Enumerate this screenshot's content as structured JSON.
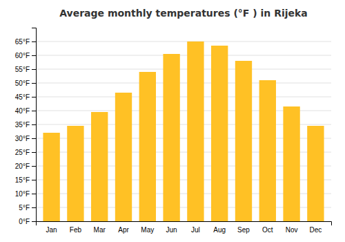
{
  "chart_data": {
    "type": "bar",
    "title": "Average monthly temperatures (°F ) in Rijeka",
    "categories": [
      "Jan",
      "Feb",
      "Mar",
      "Apr",
      "May",
      "Jun",
      "Jul",
      "Aug",
      "Sep",
      "Oct",
      "Nov",
      "Dec"
    ],
    "values": [
      32,
      34.5,
      39.5,
      46.5,
      54,
      60.5,
      65,
      63.5,
      58,
      51,
      41.5,
      34.5
    ],
    "color": "#FFC125",
    "ylim": [
      0,
      70
    ],
    "yticks": [
      {
        "value": 0,
        "label": "0°F"
      },
      {
        "value": 5,
        "label": "5°F"
      },
      {
        "value": 10,
        "label": "10°F"
      },
      {
        "value": 15,
        "label": "15°F"
      },
      {
        "value": 20,
        "label": "20°F"
      },
      {
        "value": 25,
        "label": "25°F"
      },
      {
        "value": 30,
        "label": "30°F"
      },
      {
        "value": 35,
        "label": "35°F"
      },
      {
        "value": 40,
        "label": "40°F"
      },
      {
        "value": 45,
        "label": "45°F"
      },
      {
        "value": 50,
        "label": "50°F"
      },
      {
        "value": 55,
        "label": "55°F"
      },
      {
        "value": 60,
        "label": "60°F"
      },
      {
        "value": 65,
        "label": "65°F"
      }
    ],
    "grid": true
  }
}
